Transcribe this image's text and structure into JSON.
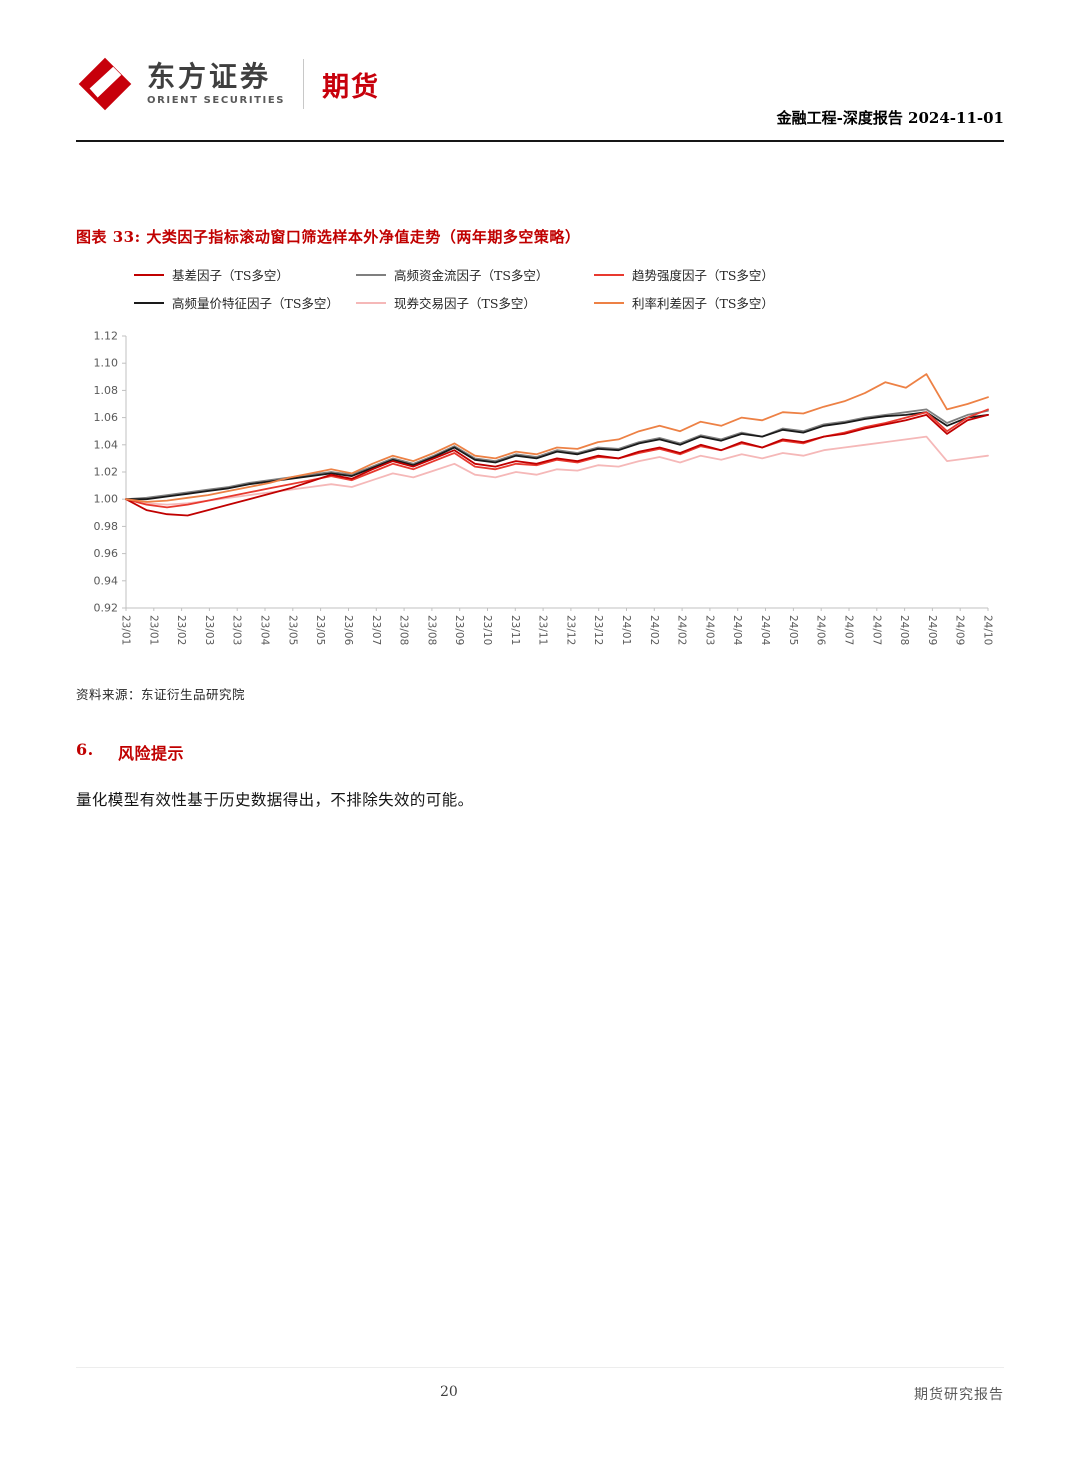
{
  "header": {
    "brand_cn": "东方证券",
    "brand_en": "ORIENT SECURITIES",
    "department": "期货",
    "doc_info": "金融工程-深度报告 2024-11-01"
  },
  "figure": {
    "title": "图表 33: 大类因子指标滚动窗口筛选样本外净值走势（两年期多空策略）",
    "source": "资料来源：东证衍生品研究院"
  },
  "risk": {
    "number": "6.",
    "title": "风险提示",
    "body": "量化模型有效性基于历史数据得出，不排除失效的可能。"
  },
  "footer": {
    "page_number": "20",
    "label": "期货研究报告"
  },
  "colors": {
    "accent_red": "#c00000",
    "brand_red": "#c7000b",
    "axis_gray": "#c0c0c0",
    "tick_text": "#595959"
  },
  "chart_data": {
    "type": "line",
    "title": "大类因子指标滚动窗口筛选样本外净值走势（两年期多空策略）",
    "xlabel": "",
    "ylabel": "",
    "grid": false,
    "legend_position": "top",
    "ylim": [
      0.92,
      1.12
    ],
    "y_ticks": [
      "0.92",
      "0.94",
      "0.96",
      "0.98",
      "1.00",
      "1.02",
      "1.04",
      "1.06",
      "1.08",
      "1.10",
      "1.12"
    ],
    "x_tick_labels": [
      "23/01",
      "23/01",
      "23/02",
      "23/03",
      "23/03",
      "23/04",
      "23/05",
      "23/05",
      "23/06",
      "23/07",
      "23/08",
      "23/08",
      "23/09",
      "23/10",
      "23/11",
      "23/11",
      "23/12",
      "23/12",
      "24/01",
      "24/02",
      "24/02",
      "24/03",
      "24/04",
      "24/04",
      "24/05",
      "24/06",
      "24/07",
      "24/07",
      "24/08",
      "24/09",
      "24/09",
      "24/10"
    ],
    "draw_order": [
      4,
      1,
      3,
      2,
      0,
      5
    ],
    "series": [
      {
        "name": "基差因子（TS多空）",
        "color": "#c00000",
        "values": [
          1.0,
          0.992,
          0.989,
          0.988,
          0.992,
          0.996,
          1.0,
          1.004,
          1.008,
          1.013,
          1.018,
          1.015,
          1.022,
          1.028,
          1.024,
          1.03,
          1.036,
          1.026,
          1.024,
          1.028,
          1.026,
          1.03,
          1.028,
          1.032,
          1.03,
          1.035,
          1.038,
          1.034,
          1.04,
          1.036,
          1.042,
          1.038,
          1.044,
          1.042,
          1.046,
          1.048,
          1.052,
          1.055,
          1.058,
          1.062,
          1.048,
          1.058,
          1.062
        ]
      },
      {
        "name": "高频资金流因子（TS多空）",
        "color": "#7f7f7f",
        "values": [
          1.0,
          1.001,
          1.003,
          1.005,
          1.007,
          1.009,
          1.012,
          1.014,
          1.016,
          1.018,
          1.02,
          1.018,
          1.024,
          1.03,
          1.026,
          1.032,
          1.039,
          1.03,
          1.028,
          1.033,
          1.031,
          1.036,
          1.034,
          1.038,
          1.037,
          1.042,
          1.045,
          1.041,
          1.047,
          1.044,
          1.049,
          1.046,
          1.052,
          1.05,
          1.055,
          1.057,
          1.06,
          1.062,
          1.064,
          1.066,
          1.056,
          1.062,
          1.065
        ]
      },
      {
        "name": "趋势强度因子（TS多空）",
        "color": "#e8392f",
        "values": [
          1.0,
          0.996,
          0.994,
          0.996,
          0.999,
          1.002,
          1.005,
          1.008,
          1.011,
          1.014,
          1.017,
          1.014,
          1.02,
          1.026,
          1.022,
          1.028,
          1.034,
          1.024,
          1.022,
          1.026,
          1.025,
          1.029,
          1.027,
          1.031,
          1.03,
          1.034,
          1.037,
          1.033,
          1.039,
          1.036,
          1.041,
          1.038,
          1.043,
          1.041,
          1.046,
          1.049,
          1.053,
          1.056,
          1.06,
          1.064,
          1.05,
          1.06,
          1.066
        ]
      },
      {
        "name": "高频量价特征因子（TS多空）",
        "color": "#1a1a1a",
        "values": [
          1.0,
          1.0,
          1.002,
          1.004,
          1.006,
          1.008,
          1.011,
          1.013,
          1.015,
          1.017,
          1.019,
          1.017,
          1.023,
          1.029,
          1.025,
          1.031,
          1.038,
          1.029,
          1.027,
          1.032,
          1.03,
          1.035,
          1.033,
          1.037,
          1.036,
          1.041,
          1.044,
          1.04,
          1.046,
          1.043,
          1.048,
          1.046,
          1.051,
          1.049,
          1.054,
          1.056,
          1.059,
          1.061,
          1.062,
          1.064,
          1.054,
          1.06,
          1.062
        ]
      },
      {
        "name": "现券交易因子（TS多空）",
        "color": "#f5b8b8",
        "values": [
          1.0,
          0.997,
          0.996,
          0.997,
          0.999,
          1.001,
          1.003,
          1.005,
          1.007,
          1.009,
          1.011,
          1.009,
          1.014,
          1.019,
          1.016,
          1.021,
          1.026,
          1.018,
          1.016,
          1.02,
          1.018,
          1.022,
          1.021,
          1.025,
          1.024,
          1.028,
          1.031,
          1.027,
          1.032,
          1.029,
          1.033,
          1.03,
          1.034,
          1.032,
          1.036,
          1.038,
          1.04,
          1.042,
          1.044,
          1.046,
          1.028,
          1.03,
          1.032
        ]
      },
      {
        "name": "利率利差因子（TS多空）",
        "color": "#ed8145",
        "values": [
          1.0,
          0.998,
          0.999,
          1.001,
          1.003,
          1.006,
          1.009,
          1.012,
          1.016,
          1.019,
          1.022,
          1.019,
          1.026,
          1.032,
          1.028,
          1.034,
          1.041,
          1.032,
          1.03,
          1.035,
          1.033,
          1.038,
          1.037,
          1.042,
          1.044,
          1.05,
          1.054,
          1.05,
          1.057,
          1.054,
          1.06,
          1.058,
          1.064,
          1.063,
          1.068,
          1.072,
          1.078,
          1.086,
          1.082,
          1.092,
          1.066,
          1.07,
          1.075
        ]
      }
    ]
  }
}
